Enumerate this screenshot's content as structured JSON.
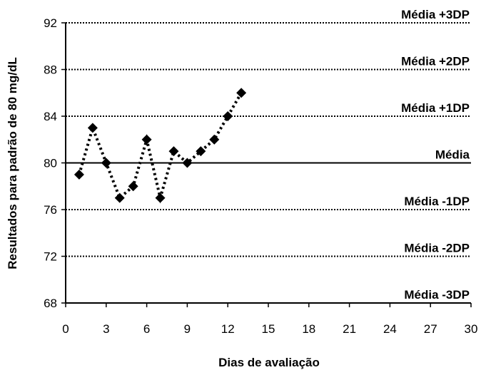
{
  "chart_data": {
    "type": "line",
    "title": "",
    "xlabel": "Dias de avaliação",
    "ylabel": "Resultados para padrão de 80 mg/dL",
    "xlim": [
      0,
      30
    ],
    "ylim": [
      68,
      92
    ],
    "x_ticks": [
      "0",
      "3",
      "6",
      "9",
      "12",
      "15",
      "18",
      "21",
      "24",
      "27",
      "30"
    ],
    "y_ticks": [
      "68",
      "72",
      "76",
      "80",
      "84",
      "88",
      "92"
    ],
    "grid": false,
    "legend": "none",
    "series": [
      {
        "x": [
          1,
          2,
          3,
          4,
          5,
          6,
          7,
          8,
          9,
          10,
          11,
          12,
          13
        ],
        "y": [
          79,
          83,
          80,
          77,
          78,
          82,
          77,
          81,
          80,
          81,
          82,
          84,
          86
        ],
        "line_style": "dotted",
        "marker": "diamond",
        "color": "#000000"
      }
    ],
    "reference_lines": [
      {
        "label": "Média +3DP",
        "y": 92,
        "style": "dotted"
      },
      {
        "label": "Média +2DP",
        "y": 88,
        "style": "dotted"
      },
      {
        "label": "Média +1DP",
        "y": 84,
        "style": "dotted"
      },
      {
        "label": "Média",
        "y": 80,
        "style": "solid"
      },
      {
        "label": "Média -1DP",
        "y": 76,
        "style": "dotted"
      },
      {
        "label": "Média -2DP",
        "y": 72,
        "style": "dotted"
      },
      {
        "label": "Média -3DP",
        "y": 68,
        "style": "dotted"
      }
    ]
  }
}
